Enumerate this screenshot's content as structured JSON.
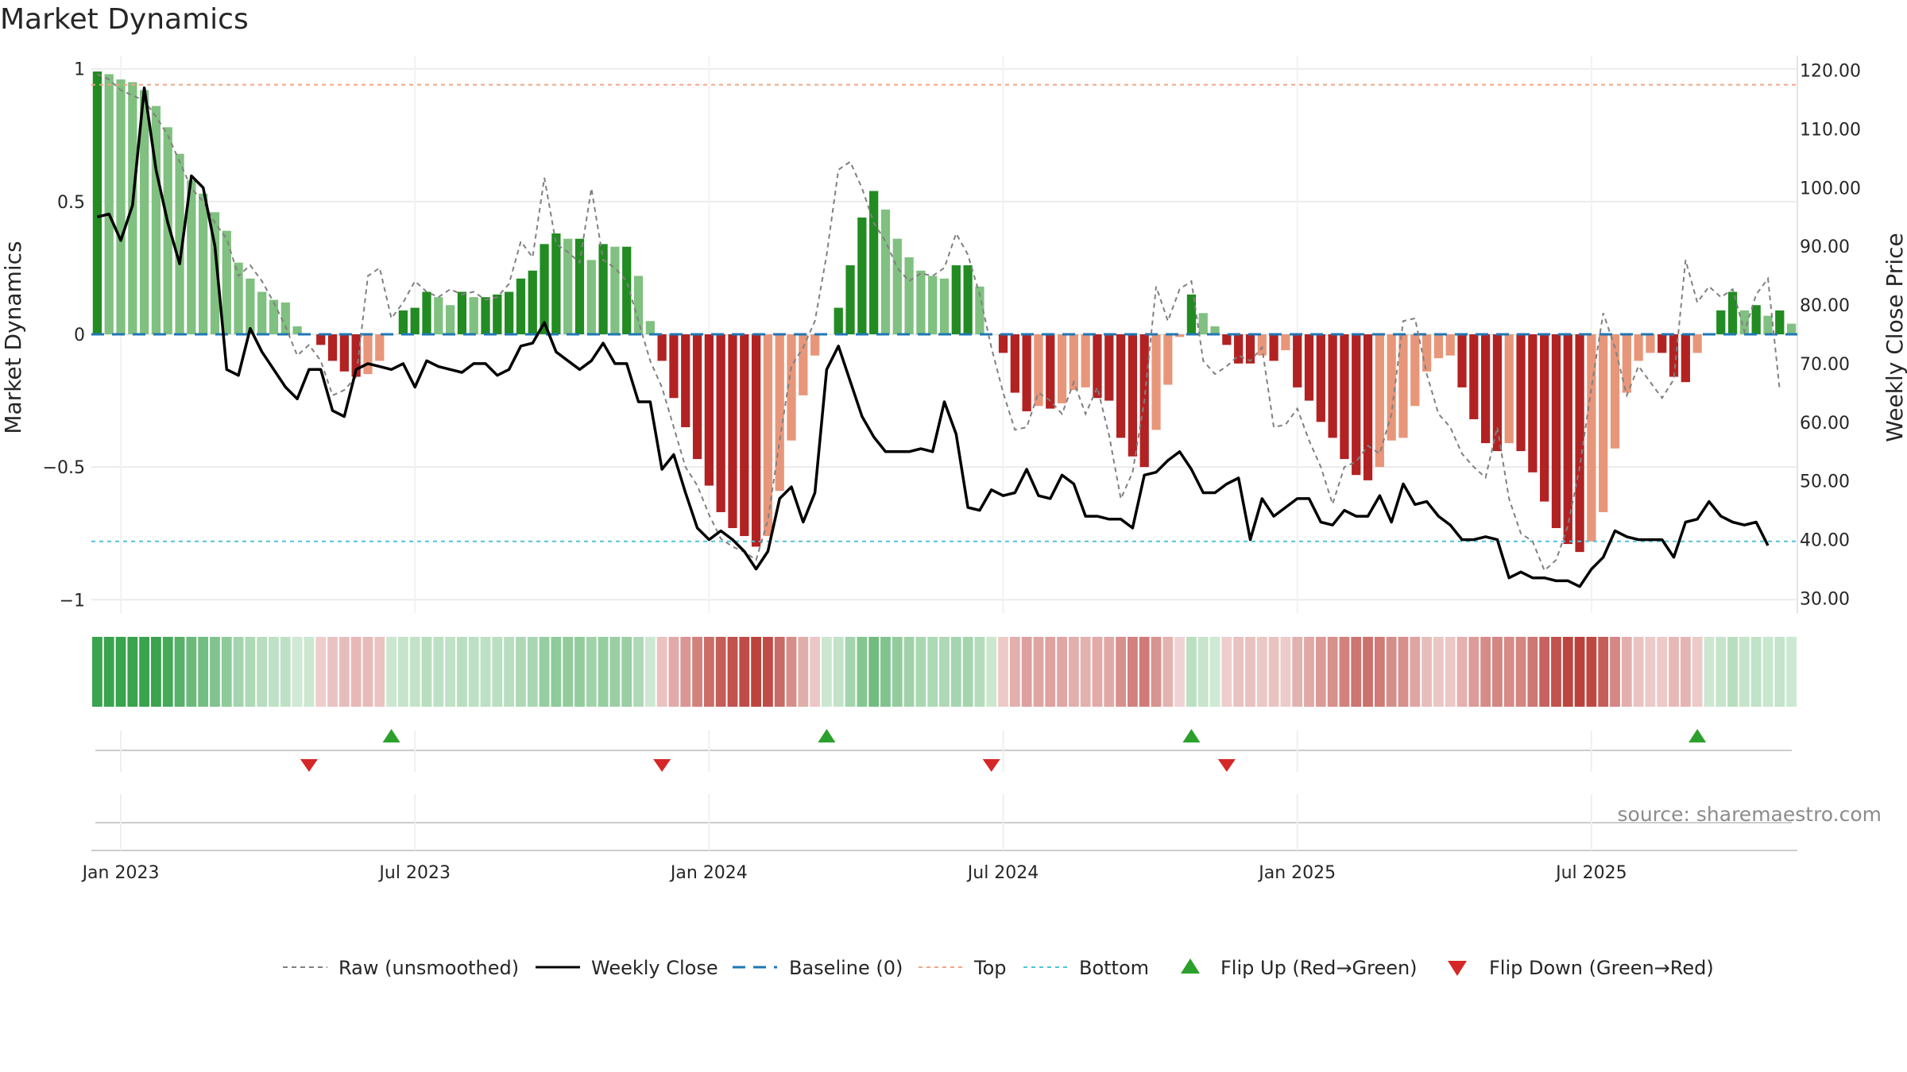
{
  "page": {
    "title": "Market Dynamics"
  },
  "colors": {
    "dark_green": "#228b22",
    "light_green": "#80c080",
    "dark_red": "#b22222",
    "light_red": "#e8967a",
    "close": "#000000",
    "raw": "#808080",
    "baseline": "#1f77b4",
    "top": "#f4a582",
    "bottom": "#4fc3dc",
    "flip_up": "#2ca02c",
    "flip_down": "#d62728",
    "strip_green": "#2e9e44",
    "strip_red": "#b5312b"
  },
  "chart_data": {
    "type": "bar",
    "title": "Market Dynamics",
    "ylabel_left": "Market Dynamics",
    "ylabel_right": "Weekly Close Price",
    "ylim_left": [
      -1.05,
      1.05
    ],
    "ylim_right": [
      27.5,
      122.5
    ],
    "left_ticks": [
      1,
      0.5,
      0,
      -0.5,
      -1
    ],
    "left_tick_labels": [
      "1",
      "0.5",
      "0",
      "−0.5",
      "−1"
    ],
    "right_ticks": [
      120,
      110,
      100,
      90,
      80,
      70,
      60,
      50,
      40,
      30
    ],
    "right_tick_labels": [
      "120.00",
      "110.00",
      "100.00",
      "90.00",
      "80.00",
      "70.00",
      "60.00",
      "50.00",
      "40.00",
      "30.00"
    ],
    "x_ticks": [
      2,
      27,
      52,
      77,
      102,
      127
    ],
    "x_tick_labels": [
      "Jan 2023",
      "Jul 2023",
      "Jan 2024",
      "Jul 2024",
      "Jan 2025",
      "Jul 2025"
    ],
    "top_level": 0.94,
    "bottom_level": -0.78,
    "baseline_level": 0,
    "dynamics": [
      0.99,
      0.98,
      0.96,
      0.95,
      0.92,
      0.86,
      0.78,
      0.68,
      0.58,
      0.53,
      0.46,
      0.39,
      0.27,
      0.21,
      0.16,
      0.13,
      0.12,
      0.03,
      0,
      -0.04,
      -0.1,
      -0.14,
      -0.16,
      -0.15,
      -0.1,
      0,
      0.09,
      0.1,
      0.16,
      0.14,
      0.11,
      0.16,
      0.14,
      0.14,
      0.15,
      0.16,
      0.21,
      0.24,
      0.34,
      0.38,
      0.36,
      0.36,
      0.28,
      0.34,
      0.33,
      0.33,
      0.22,
      0.05,
      -0.1,
      -0.24,
      -0.35,
      -0.47,
      -0.57,
      -0.67,
      -0.73,
      -0.76,
      -0.8,
      -0.76,
      -0.59,
      -0.4,
      -0.23,
      -0.08,
      0,
      0.1,
      0.26,
      0.44,
      0.54,
      0.47,
      0.36,
      0.29,
      0.24,
      0.22,
      0.21,
      0.26,
      0.26,
      0.18,
      0,
      -0.07,
      -0.22,
      -0.29,
      -0.27,
      -0.28,
      -0.26,
      -0.21,
      -0.2,
      -0.24,
      -0.25,
      -0.39,
      -0.46,
      -0.5,
      -0.36,
      -0.19,
      -0.01,
      0.15,
      0.08,
      0.03,
      -0.04,
      -0.11,
      -0.11,
      -0.08,
      -0.1,
      -0.06,
      -0.2,
      -0.25,
      -0.33,
      -0.39,
      -0.47,
      -0.53,
      -0.55,
      -0.5,
      -0.4,
      -0.39,
      -0.27,
      -0.14,
      -0.09,
      -0.08,
      -0.2,
      -0.32,
      -0.41,
      -0.44,
      -0.41,
      -0.44,
      -0.52,
      -0.63,
      -0.73,
      -0.79,
      -0.82,
      -0.78,
      -0.67,
      -0.43,
      -0.22,
      -0.1,
      -0.07,
      -0.07,
      -0.16,
      -0.18,
      -0.07,
      0,
      0.09,
      0.16,
      0.09,
      0.11,
      0.07,
      0.09,
      0.04
    ],
    "raw": [
      0.98,
      0.96,
      0.92,
      0.9,
      0.88,
      0.82,
      0.75,
      0.65,
      0.55,
      0.5,
      0.42,
      0.36,
      0.22,
      0.26,
      0.2,
      0.12,
      0.03,
      -0.08,
      -0.04,
      -0.1,
      -0.23,
      -0.21,
      -0.16,
      0.22,
      0.25,
      0.06,
      0.12,
      0.2,
      0.16,
      0.14,
      0.17,
      0.15,
      0.16,
      0.13,
      0.14,
      0.19,
      0.35,
      0.29,
      0.59,
      0.34,
      0.31,
      0.27,
      0.55,
      0.28,
      0.25,
      0.2,
      0.05,
      -0.1,
      -0.2,
      -0.35,
      -0.5,
      -0.57,
      -0.68,
      -0.77,
      -0.8,
      -0.82,
      -0.85,
      -0.7,
      -0.4,
      -0.12,
      -0.05,
      0.05,
      0.3,
      0.62,
      0.65,
      0.55,
      0.42,
      0.35,
      0.25,
      0.2,
      0.23,
      0.22,
      0.25,
      0.38,
      0.3,
      0.15,
      -0.05,
      -0.22,
      -0.36,
      -0.35,
      -0.22,
      -0.25,
      -0.3,
      -0.18,
      -0.3,
      -0.2,
      -0.38,
      -0.62,
      -0.52,
      -0.25,
      0.18,
      0.05,
      0.17,
      0.2,
      -0.1,
      -0.15,
      -0.12,
      -0.08,
      -0.1,
      -0.05,
      -0.35,
      -0.34,
      -0.28,
      -0.4,
      -0.5,
      -0.64,
      -0.5,
      -0.48,
      -0.42,
      -0.45,
      -0.3,
      0.05,
      0.06,
      -0.15,
      -0.3,
      -0.35,
      -0.45,
      -0.5,
      -0.54,
      -0.35,
      -0.62,
      -0.75,
      -0.78,
      -0.89,
      -0.85,
      -0.72,
      -0.5,
      -0.2,
      0.08,
      -0.05,
      -0.23,
      -0.12,
      -0.18,
      -0.24,
      -0.17,
      0.28,
      0.12,
      0.18,
      0.14,
      0.17,
      0.01,
      0.15,
      0.21,
      -0.21
    ],
    "weekly_close": [
      95,
      95.5,
      91,
      97,
      117,
      103,
      94,
      87,
      102,
      100,
      90,
      69,
      68,
      76,
      72,
      69,
      66,
      64,
      69,
      69,
      62,
      61,
      69,
      70,
      69.5,
      69,
      70,
      66,
      70.5,
      69.5,
      69,
      68.5,
      70,
      70,
      68,
      69,
      73,
      73.5,
      77,
      72,
      70.5,
      69,
      70.5,
      73.5,
      70,
      70,
      63.5,
      63.5,
      52,
      54.5,
      48,
      42,
      40,
      41.5,
      40,
      38,
      35,
      38,
      47,
      49,
      43,
      48,
      69,
      73,
      67,
      61,
      57.5,
      55,
      55,
      55,
      55.5,
      55,
      63.5,
      58,
      45.5,
      45,
      48.5,
      47.5,
      48,
      52,
      47.5,
      47,
      51,
      49.5,
      44,
      44,
      43.5,
      43.5,
      42,
      51,
      51.5,
      53.5,
      55,
      52,
      48,
      48,
      49.5,
      50.5,
      40,
      47,
      44,
      45.5,
      47,
      47,
      43,
      42.5,
      45,
      44,
      44,
      47.5,
      43,
      49.5,
      46,
      46.5,
      44,
      42.5,
      40,
      40,
      40.5,
      40,
      33.5,
      34.5,
      33.5,
      33.5,
      33,
      33,
      32,
      35,
      37,
      41.5,
      40.5,
      40,
      40,
      40,
      37,
      43,
      43.5,
      46.5,
      44,
      43,
      42.5,
      43,
      39
    ]
  },
  "regime_strip": {
    "label": ""
  },
  "flips": {
    "up_label": "Flip Up (Red→Green)",
    "down_label": "Flip Down (Green→Red)",
    "up_indices": [
      25,
      62,
      93,
      136
    ],
    "down_indices": [
      18,
      48,
      76,
      96
    ]
  },
  "source": {
    "text": "source: sharemaestro.com"
  },
  "legend": {
    "raw": "Raw (unsmoothed)",
    "close": "Weekly Close",
    "baseline": "Baseline (0)",
    "top": "Top",
    "bottom": "Bottom",
    "flip_up": "Flip Up (Red→Green)",
    "flip_down": "Flip Down (Green→Red)"
  }
}
